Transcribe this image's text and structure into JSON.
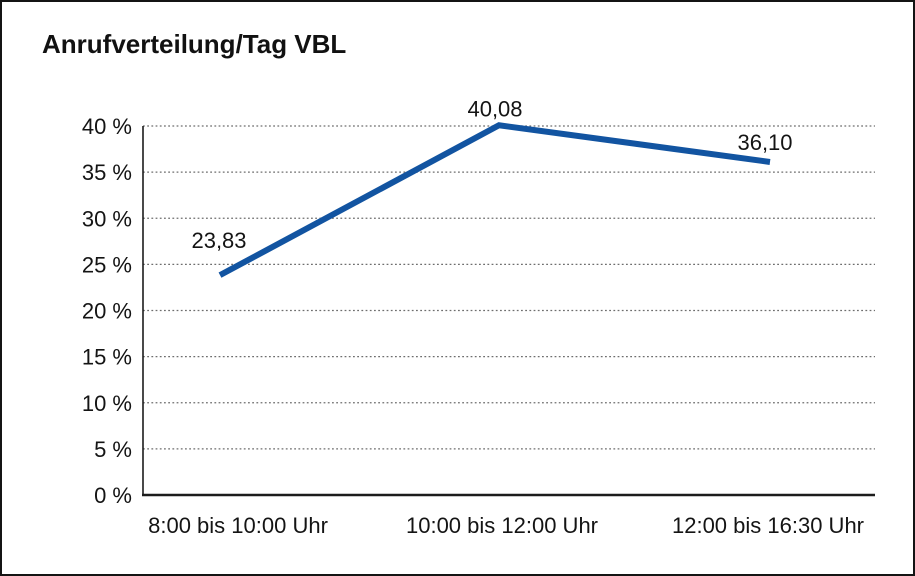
{
  "frame": {
    "background": "#ffffff",
    "border_color": "#141414"
  },
  "chart_data": {
    "type": "line",
    "title": "Anrufverteilung/Tag VBL",
    "categories": [
      "8:00 bis 10:00 Uhr",
      "10:00 bis 12:00 Uhr",
      "12:00 bis 16:30 Uhr"
    ],
    "series": [
      {
        "values": [
          23.83,
          40.08,
          36.1
        ],
        "point_labels": [
          "23,83",
          "40,08",
          "36,10"
        ]
      }
    ],
    "xlabel": "",
    "ylabel": "",
    "ylim": [
      0,
      40
    ],
    "y_ticks": [
      0,
      5,
      10,
      15,
      20,
      25,
      30,
      35,
      40
    ],
    "y_tick_suffix": " %",
    "grid": "horizontal-dotted",
    "legend": "none",
    "line_color": "#1254a1",
    "grid_color": "#6e6e6e",
    "axis_color": "#1c1c1c",
    "text_color": "#141414"
  }
}
